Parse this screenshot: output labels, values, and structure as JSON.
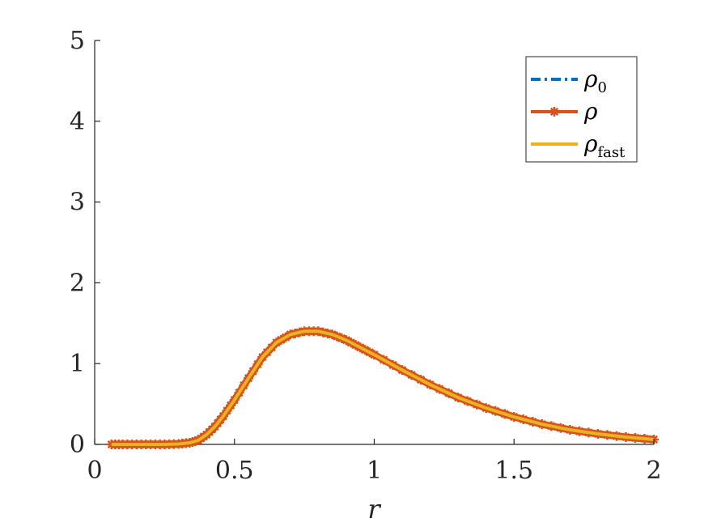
{
  "chart_data": {
    "type": "line",
    "xlabel": "r",
    "ylabel": "",
    "xlim": [
      0,
      2
    ],
    "ylim": [
      0,
      5
    ],
    "xticks": [
      {
        "value": 0,
        "label": "0"
      },
      {
        "value": 0.5,
        "label": "0.5"
      },
      {
        "value": 1,
        "label": "1"
      },
      {
        "value": 1.5,
        "label": "1.5"
      },
      {
        "value": 2,
        "label": "2"
      }
    ],
    "yticks": [
      {
        "value": 0,
        "label": "0"
      },
      {
        "value": 1,
        "label": "1"
      },
      {
        "value": 2,
        "label": "2"
      },
      {
        "value": 3,
        "label": "3"
      },
      {
        "value": 4,
        "label": "4"
      },
      {
        "value": 5,
        "label": "5"
      }
    ],
    "grid": false,
    "legend_position": "top-right",
    "x": [
      0.06,
      0.1,
      0.15,
      0.2,
      0.25,
      0.3,
      0.34,
      0.37,
      0.4,
      0.43,
      0.46,
      0.5,
      0.55,
      0.6,
      0.65,
      0.7,
      0.75,
      0.8,
      0.85,
      0.9,
      0.95,
      1.0,
      1.1,
      1.2,
      1.3,
      1.4,
      1.5,
      1.6,
      1.7,
      1.8,
      1.9,
      2.0
    ],
    "series": [
      {
        "name": "ρ0",
        "legend_base": "ρ",
        "legend_sub": "0",
        "color": "#0072BD",
        "style": "dash-dot",
        "values": [
          0.0,
          0.0,
          0.0,
          0.0,
          0.0,
          0.005,
          0.02,
          0.05,
          0.12,
          0.22,
          0.35,
          0.55,
          0.82,
          1.08,
          1.26,
          1.36,
          1.4,
          1.4,
          1.36,
          1.29,
          1.2,
          1.11,
          0.92,
          0.74,
          0.58,
          0.45,
          0.34,
          0.25,
          0.18,
          0.13,
          0.09,
          0.06
        ]
      },
      {
        "name": "ρ",
        "legend_base": "ρ",
        "legend_sub": "",
        "color": "#D95319",
        "style": "solid-star",
        "values": [
          0.0,
          0.0,
          0.0,
          0.0,
          0.0,
          0.005,
          0.02,
          0.05,
          0.12,
          0.22,
          0.35,
          0.55,
          0.82,
          1.08,
          1.26,
          1.36,
          1.4,
          1.4,
          1.36,
          1.29,
          1.2,
          1.11,
          0.92,
          0.74,
          0.58,
          0.45,
          0.34,
          0.25,
          0.18,
          0.13,
          0.09,
          0.06
        ]
      },
      {
        "name": "ρfast",
        "legend_base": "ρ",
        "legend_sub": "fast",
        "color": "#EDB120",
        "style": "solid",
        "values": [
          0.0,
          0.0,
          0.0,
          0.0,
          0.0,
          0.005,
          0.02,
          0.05,
          0.12,
          0.22,
          0.35,
          0.55,
          0.82,
          1.08,
          1.26,
          1.36,
          1.4,
          1.4,
          1.36,
          1.29,
          1.2,
          1.11,
          0.92,
          0.74,
          0.58,
          0.45,
          0.34,
          0.25,
          0.18,
          0.13,
          0.09,
          0.06
        ]
      }
    ]
  }
}
